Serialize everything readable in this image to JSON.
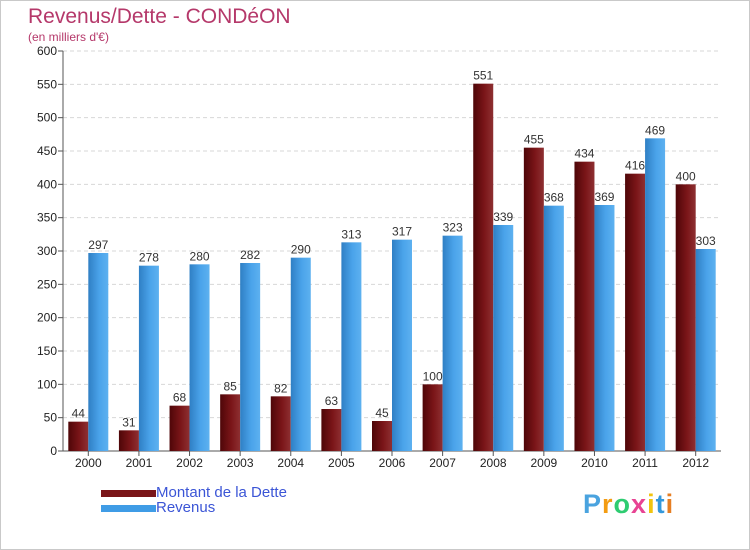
{
  "header": {
    "title": "Revenus/Dette - CONDéON",
    "subtitle": "(en milliers d'€)"
  },
  "legend": {
    "items": [
      {
        "label": "Montant de la Dette",
        "color": "#7a1518"
      },
      {
        "label": "Revenus",
        "color": "#3f9ce6"
      }
    ]
  },
  "logo": {
    "letters": [
      "P",
      "r",
      "o",
      "x",
      "i",
      "t",
      "i"
    ],
    "colors": [
      "#4aa3df",
      "#f39c12",
      "#2ecc71",
      "#e84393",
      "#f1c40f",
      "#3498db",
      "#e67e22"
    ]
  },
  "chart_data": {
    "type": "bar",
    "title": "Revenus/Dette - CONDéON",
    "subtitle": "(en milliers d'€)",
    "categories": [
      "2000",
      "2001",
      "2002",
      "2003",
      "2004",
      "2005",
      "2006",
      "2007",
      "2008",
      "2009",
      "2010",
      "2011",
      "2012"
    ],
    "series": [
      {
        "name": "Montant de la Dette",
        "color": "#7a1518",
        "values": [
          44,
          31,
          68,
          85,
          82,
          63,
          45,
          100,
          551,
          455,
          434,
          416,
          400
        ]
      },
      {
        "name": "Revenus",
        "color": "#3f9ce6",
        "values": [
          297,
          278,
          280,
          282,
          290,
          313,
          317,
          323,
          339,
          368,
          369,
          469,
          303
        ]
      }
    ],
    "ylim": [
      0,
      600
    ],
    "yticks": [
      0,
      50,
      100,
      150,
      200,
      250,
      300,
      350,
      400,
      450,
      500,
      550,
      600
    ],
    "grid": true,
    "legend_position": "bottom-left"
  }
}
